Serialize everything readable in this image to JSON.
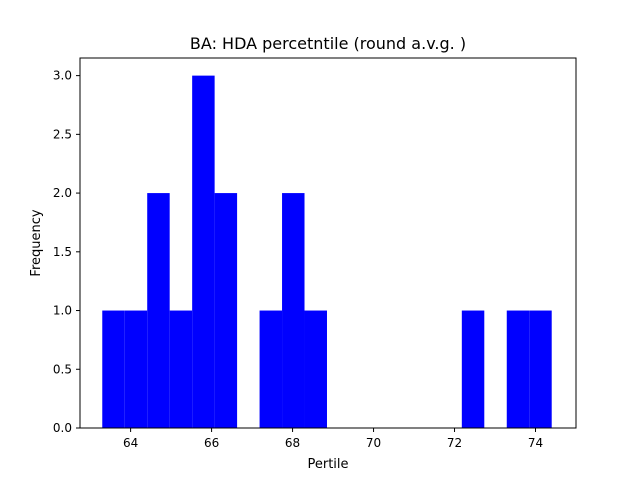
{
  "chart_data": {
    "type": "bar",
    "title": "BA: HDA percetntile (round a.v.g. )",
    "xlabel": "Pertile",
    "ylabel": "Frequency",
    "xlim": [
      62.75,
      75.0
    ],
    "ylim": [
      0,
      3.15
    ],
    "x_ticks": [
      64,
      66,
      68,
      70,
      72,
      74
    ],
    "x_tick_labels": [
      "64",
      "66",
      "68",
      "70",
      "72",
      "74"
    ],
    "y_ticks": [
      0,
      0.5,
      1.0,
      1.5,
      2.0,
      2.5,
      3.0
    ],
    "y_tick_labels": [
      "0.0",
      "0.5",
      "1.0",
      "1.5",
      "2.0",
      "2.5",
      "3.0"
    ],
    "bar_color": "#0000ff",
    "bin_width": 0.555,
    "bins": [
      {
        "start": 63.3,
        "count": 1
      },
      {
        "start": 63.855,
        "count": 1
      },
      {
        "start": 64.41,
        "count": 2
      },
      {
        "start": 64.965,
        "count": 1
      },
      {
        "start": 65.52,
        "count": 3
      },
      {
        "start": 66.075,
        "count": 2
      },
      {
        "start": 66.63,
        "count": 0
      },
      {
        "start": 67.185,
        "count": 1
      },
      {
        "start": 67.74,
        "count": 2
      },
      {
        "start": 68.295,
        "count": 1
      },
      {
        "start": 68.85,
        "count": 0
      },
      {
        "start": 69.405,
        "count": 0
      },
      {
        "start": 69.96,
        "count": 0
      },
      {
        "start": 70.515,
        "count": 0
      },
      {
        "start": 71.07,
        "count": 0
      },
      {
        "start": 71.625,
        "count": 0
      },
      {
        "start": 72.18,
        "count": 1
      },
      {
        "start": 72.735,
        "count": 0
      },
      {
        "start": 73.29,
        "count": 1
      },
      {
        "start": 73.845,
        "count": 1
      }
    ]
  }
}
